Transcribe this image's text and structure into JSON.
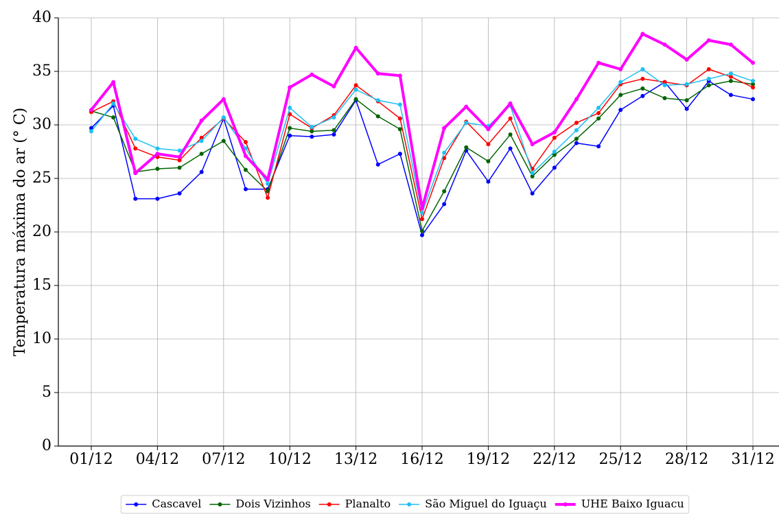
{
  "chart_data": {
    "type": "line",
    "y_label": "Temperatura máxima do ar (° C)",
    "categories": [
      "01/12",
      null,
      null,
      "04/12",
      null,
      null,
      "07/12",
      null,
      null,
      "10/12",
      null,
      null,
      "13/12",
      null,
      null,
      "16/12",
      null,
      null,
      "19/12",
      null,
      null,
      "22/12",
      null,
      null,
      "25/12",
      null,
      null,
      "28/12",
      null,
      null,
      "31/12"
    ],
    "ylim": [
      0,
      40
    ],
    "yticks": [
      0,
      5,
      10,
      15,
      20,
      25,
      30,
      35,
      40
    ],
    "grid": true,
    "legend": "bottom",
    "series": [
      {
        "name": "Cascavel",
        "color": "#0000ff",
        "width": 1.5,
        "values": [
          29.7,
          31.8,
          23.1,
          23.1,
          23.6,
          25.6,
          30.6,
          24.0,
          24.0,
          29.0,
          28.9,
          29.1,
          32.3,
          26.3,
          27.3,
          19.7,
          22.6,
          27.6,
          24.7,
          27.8,
          23.6,
          26.0,
          28.3,
          28.0,
          31.4,
          32.7,
          34.0,
          31.5,
          34.1,
          32.8,
          32.4
        ]
      },
      {
        "name": "Dois Vizinhos",
        "color": "#006400",
        "width": 1.5,
        "values": [
          31.3,
          30.7,
          25.6,
          25.9,
          26.0,
          27.3,
          28.5,
          25.8,
          23.8,
          29.7,
          29.4,
          29.5,
          32.4,
          30.8,
          29.6,
          20.1,
          23.8,
          27.9,
          26.6,
          29.1,
          25.2,
          27.2,
          28.7,
          30.6,
          32.8,
          33.4,
          32.5,
          32.3,
          33.7,
          34.1,
          33.8
        ]
      },
      {
        "name": "Planalto",
        "color": "#ff0000",
        "width": 1.5,
        "values": [
          31.2,
          32.2,
          27.8,
          27.0,
          26.7,
          28.8,
          30.6,
          28.4,
          23.2,
          31.0,
          29.7,
          30.9,
          33.7,
          32.2,
          30.6,
          21.2,
          26.9,
          30.3,
          28.2,
          30.6,
          25.9,
          28.8,
          30.2,
          31.1,
          33.8,
          34.3,
          34.0,
          33.7,
          35.2,
          34.5,
          33.5
        ]
      },
      {
        "name": "São Miguel do Iguaçu",
        "color": "#1ec0f2",
        "width": 1.5,
        "values": [
          29.4,
          32.0,
          28.7,
          27.8,
          27.6,
          28.5,
          30.7,
          27.8,
          24.5,
          31.6,
          29.8,
          30.7,
          33.3,
          32.3,
          31.9,
          21.8,
          27.4,
          30.2,
          29.9,
          31.8,
          25.5,
          27.5,
          29.5,
          31.6,
          34.0,
          35.2,
          33.7,
          33.8,
          34.3,
          34.8,
          34.1
        ]
      },
      {
        "name": "UHE Baixo Iguacu",
        "color": "#ff00ff",
        "width": 4,
        "values": [
          31.4,
          34.0,
          25.5,
          27.3,
          27.0,
          30.4,
          32.4,
          27.1,
          24.9,
          33.5,
          34.7,
          33.6,
          37.2,
          34.8,
          34.6,
          22.2,
          29.7,
          31.7,
          29.6,
          32.0,
          28.2,
          29.3,
          32.4,
          35.8,
          35.2,
          38.5,
          37.5,
          36.1,
          37.9,
          37.5,
          35.8
        ]
      }
    ]
  }
}
